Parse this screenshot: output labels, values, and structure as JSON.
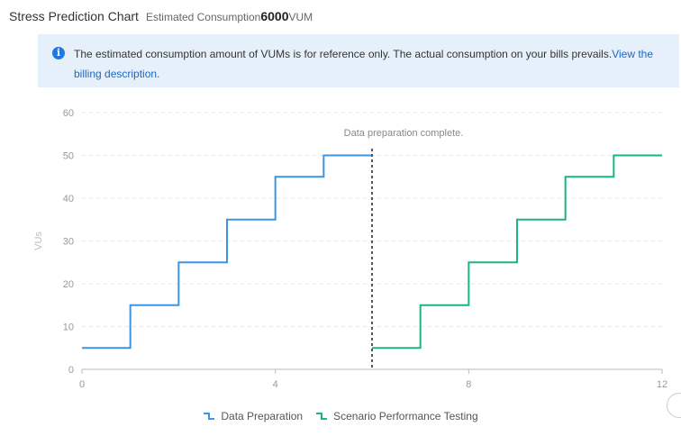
{
  "header": {
    "title": "Stress Prediction Chart",
    "estimate_label": "Estimated Consumption",
    "estimate_value": "6000",
    "estimate_unit": "VUM"
  },
  "notice": {
    "icon": "info-icon",
    "text": "The estimated consumption amount of VUMs is for reference only. The actual consumption on your bills prevails.",
    "link_text": "View the billing description."
  },
  "chart_data": {
    "type": "line",
    "step": true,
    "ylabel": "VUs",
    "xlim": [
      0,
      12
    ],
    "ylim": [
      0,
      60
    ],
    "x_ticks": [
      0,
      4,
      8,
      12
    ],
    "y_ticks": [
      0,
      10,
      20,
      30,
      40,
      50,
      60
    ],
    "grid": "horizontal-dashed",
    "legend_position": "bottom",
    "annotation": {
      "text": "Data preparation complete.",
      "x": 6
    },
    "series": [
      {
        "name": "Data Preparation",
        "color": "#3a94e8",
        "x": [
          0,
          1,
          2,
          3,
          4,
          5,
          6
        ],
        "y": [
          5,
          15,
          25,
          35,
          45,
          50,
          50
        ]
      },
      {
        "name": "Scenario Performance Testing",
        "color": "#1ab67d",
        "x": [
          6,
          7,
          8,
          9,
          10,
          11,
          12
        ],
        "y": [
          5,
          15,
          25,
          35,
          45,
          50,
          50
        ]
      }
    ]
  }
}
